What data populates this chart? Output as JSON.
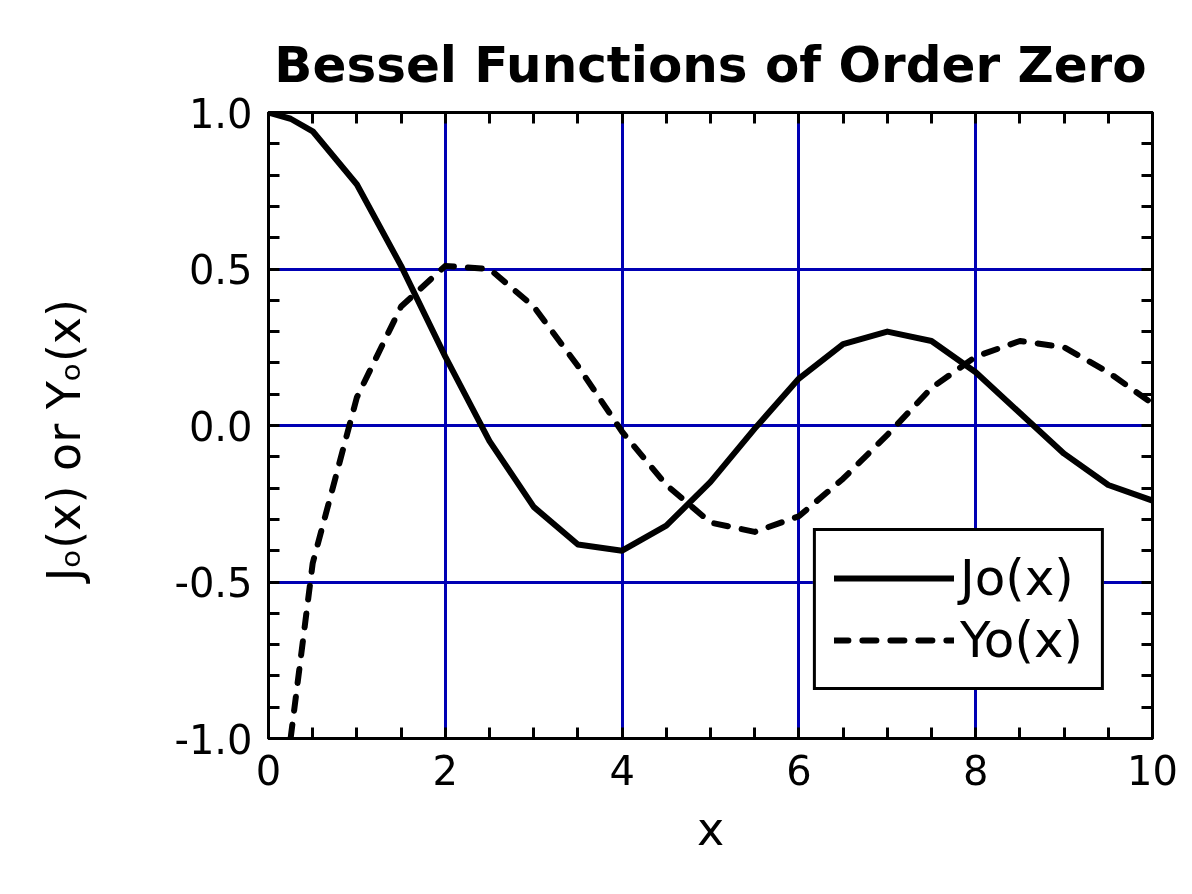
{
  "chart_data": {
    "type": "line",
    "title": "Bessel Functions of Order Zero",
    "xlabel": "x",
    "ylabel": "Jₒ(x)  or  Yₒ(x)",
    "series": [
      {
        "name": "Jo(x)",
        "color": "#000000",
        "line_style": "solid",
        "x": [
          0,
          0.25,
          0.5,
          1,
          1.5,
          2,
          2.5,
          3,
          3.5,
          4,
          4.5,
          5,
          5.5,
          6,
          6.5,
          7,
          7.5,
          8,
          8.5,
          9,
          9.5,
          10
        ],
        "values": [
          1.0,
          0.98,
          0.94,
          0.77,
          0.51,
          0.22,
          -0.05,
          -0.26,
          -0.38,
          -0.4,
          -0.32,
          -0.18,
          -0.01,
          0.15,
          0.26,
          0.3,
          0.27,
          0.17,
          0.04,
          -0.09,
          -0.19,
          -0.24
        ]
      },
      {
        "name": "Yo(x)",
        "color": "#000000",
        "line_style": "dashed",
        "x": [
          0.25,
          0.5,
          1,
          1.5,
          2,
          2.5,
          3,
          3.5,
          4,
          4.5,
          5,
          5.5,
          6,
          6.5,
          7,
          7.5,
          8,
          8.5,
          9,
          9.5,
          10
        ],
        "values": [
          -1.0,
          -0.44,
          0.09,
          0.38,
          0.51,
          0.5,
          0.38,
          0.19,
          -0.02,
          -0.19,
          -0.31,
          -0.34,
          -0.29,
          -0.17,
          -0.03,
          0.12,
          0.22,
          0.27,
          0.25,
          0.17,
          0.07
        ]
      }
    ],
    "xlim": [
      0,
      10
    ],
    "ylim": [
      -1,
      1
    ],
    "xticks": [
      0,
      {
        "value": 0.5,
        "label": null
      },
      {
        "value": 1,
        "label": null
      },
      {
        "value": 1.5,
        "label": null
      },
      2,
      {
        "value": 2.5,
        "label": null
      },
      {
        "value": 3,
        "label": null
      },
      {
        "value": 3.5,
        "label": null
      },
      4,
      {
        "value": 4.5,
        "label": null
      },
      {
        "value": 5,
        "label": null
      },
      {
        "value": 5.5,
        "label": null
      },
      6,
      {
        "value": 6.5,
        "label": null
      },
      {
        "value": 7,
        "label": null
      },
      {
        "value": 7.5,
        "label": null
      },
      8,
      {
        "value": 8.5,
        "label": null
      },
      {
        "value": 9,
        "label": null
      },
      {
        "value": 9.5,
        "label": null
      },
      10
    ],
    "yticks": [
      {
        "value": -1,
        "label": "-1.0"
      },
      {
        "value": -0.9,
        "label": null
      },
      {
        "value": -0.8,
        "label": null
      },
      {
        "value": -0.7,
        "label": null
      },
      {
        "value": -0.6,
        "label": null
      },
      {
        "value": -0.5,
        "label": "-0.5"
      },
      {
        "value": -0.4,
        "label": null
      },
      {
        "value": -0.3,
        "label": null
      },
      {
        "value": -0.2,
        "label": null
      },
      {
        "value": -0.1,
        "label": null
      },
      {
        "value": 0,
        "label": "0.0"
      },
      {
        "value": 0.1,
        "label": null
      },
      {
        "value": 0.2,
        "label": null
      },
      {
        "value": 0.3,
        "label": null
      },
      {
        "value": 0.4,
        "label": null
      },
      {
        "value": 0.5,
        "label": "0.5"
      },
      {
        "value": 0.6,
        "label": null
      },
      {
        "value": 0.7,
        "label": null
      },
      {
        "value": 0.8,
        "label": null
      },
      {
        "value": 0.9,
        "label": null
      },
      {
        "value": 1,
        "label": "1.0"
      }
    ],
    "grid": true,
    "legend": "bottom right",
    "marker": "none"
  }
}
